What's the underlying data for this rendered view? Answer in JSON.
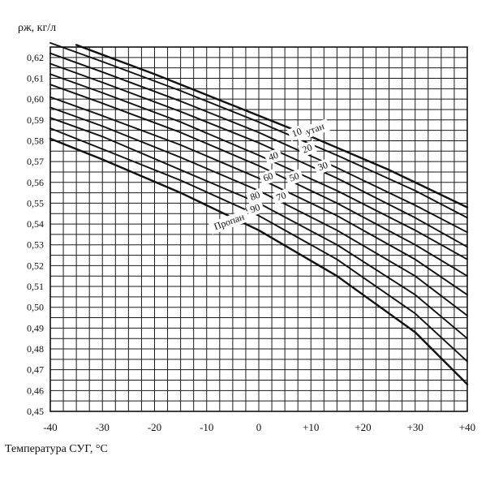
{
  "chart_data": {
    "type": "line",
    "ylabel": "ρж, кг/л",
    "xlabel": "Температура СУГ, °С",
    "xlim": [
      -40,
      40
    ],
    "ylim": [
      0.45,
      0.625
    ],
    "grid": true,
    "x_tick_labels": [
      "-40",
      "-30",
      "-20",
      "-10",
      "0",
      "+10",
      "+20",
      "+30",
      "+40"
    ],
    "x_tick_values": [
      -40,
      -30,
      -20,
      -10,
      0,
      10,
      20,
      30,
      40
    ],
    "y_tick_labels": [
      "0,45",
      "0,46",
      "0,47",
      "0,48",
      "0,49",
      "0,50",
      "0,51",
      "0,52",
      "0,53",
      "0,54",
      "0,55",
      "0,56",
      "0,57",
      "0,58",
      "0,59",
      "0,60",
      "0,61",
      "0,62"
    ],
    "y_tick_values": [
      0.45,
      0.46,
      0.47,
      0.48,
      0.49,
      0.5,
      0.51,
      0.52,
      0.53,
      0.54,
      0.55,
      0.56,
      0.57,
      0.58,
      0.59,
      0.6,
      0.61,
      0.62
    ],
    "series": [
      {
        "name": "Бутан",
        "x": [
          -35,
          -20,
          -5,
          10,
          25,
          40
        ],
        "y": [
          0.626,
          0.612,
          0.597,
          0.582,
          0.566,
          0.548
        ]
      },
      {
        "name": "10",
        "x": [
          -40,
          -30,
          -15,
          0,
          15,
          30,
          40
        ],
        "y": [
          0.627,
          0.618,
          0.604,
          0.589,
          0.573,
          0.556,
          0.543
        ]
      },
      {
        "name": "20",
        "x": [
          -40,
          -30,
          -15,
          0,
          15,
          30,
          40
        ],
        "y": [
          0.622,
          0.613,
          0.599,
          0.584,
          0.567,
          0.549,
          0.536
        ]
      },
      {
        "name": "30",
        "x": [
          -40,
          -30,
          -15,
          0,
          15,
          30,
          40
        ],
        "y": [
          0.617,
          0.608,
          0.594,
          0.579,
          0.562,
          0.543,
          0.529
        ]
      },
      {
        "name": "40",
        "x": [
          -40,
          -30,
          -15,
          0,
          15,
          30,
          40
        ],
        "y": [
          0.612,
          0.603,
          0.589,
          0.573,
          0.556,
          0.537,
          0.523
        ]
      },
      {
        "name": "50",
        "x": [
          -40,
          -30,
          -15,
          0,
          15,
          30,
          40
        ],
        "y": [
          0.607,
          0.598,
          0.584,
          0.568,
          0.55,
          0.53,
          0.515
        ]
      },
      {
        "name": "60",
        "x": [
          -40,
          -30,
          -15,
          0,
          15,
          30,
          40
        ],
        "y": [
          0.601,
          0.592,
          0.578,
          0.562,
          0.544,
          0.523,
          0.506
        ]
      },
      {
        "name": "70",
        "x": [
          -40,
          -30,
          -15,
          0,
          15,
          30,
          40
        ],
        "y": [
          0.596,
          0.587,
          0.572,
          0.556,
          0.537,
          0.515,
          0.496
        ]
      },
      {
        "name": "80",
        "x": [
          -40,
          -30,
          -15,
          0,
          15,
          30,
          40
        ],
        "y": [
          0.591,
          0.582,
          0.566,
          0.55,
          0.53,
          0.506,
          0.485
        ]
      },
      {
        "name": "90",
        "x": [
          -40,
          -30,
          -15,
          0,
          15,
          30,
          40
        ],
        "y": [
          0.586,
          0.576,
          0.561,
          0.544,
          0.523,
          0.497,
          0.474
        ]
      },
      {
        "name": "Пропан",
        "x": [
          -40,
          -30,
          -15,
          0,
          15,
          30,
          40
        ],
        "y": [
          0.581,
          0.571,
          0.555,
          0.537,
          0.515,
          0.488,
          0.463
        ]
      }
    ]
  }
}
